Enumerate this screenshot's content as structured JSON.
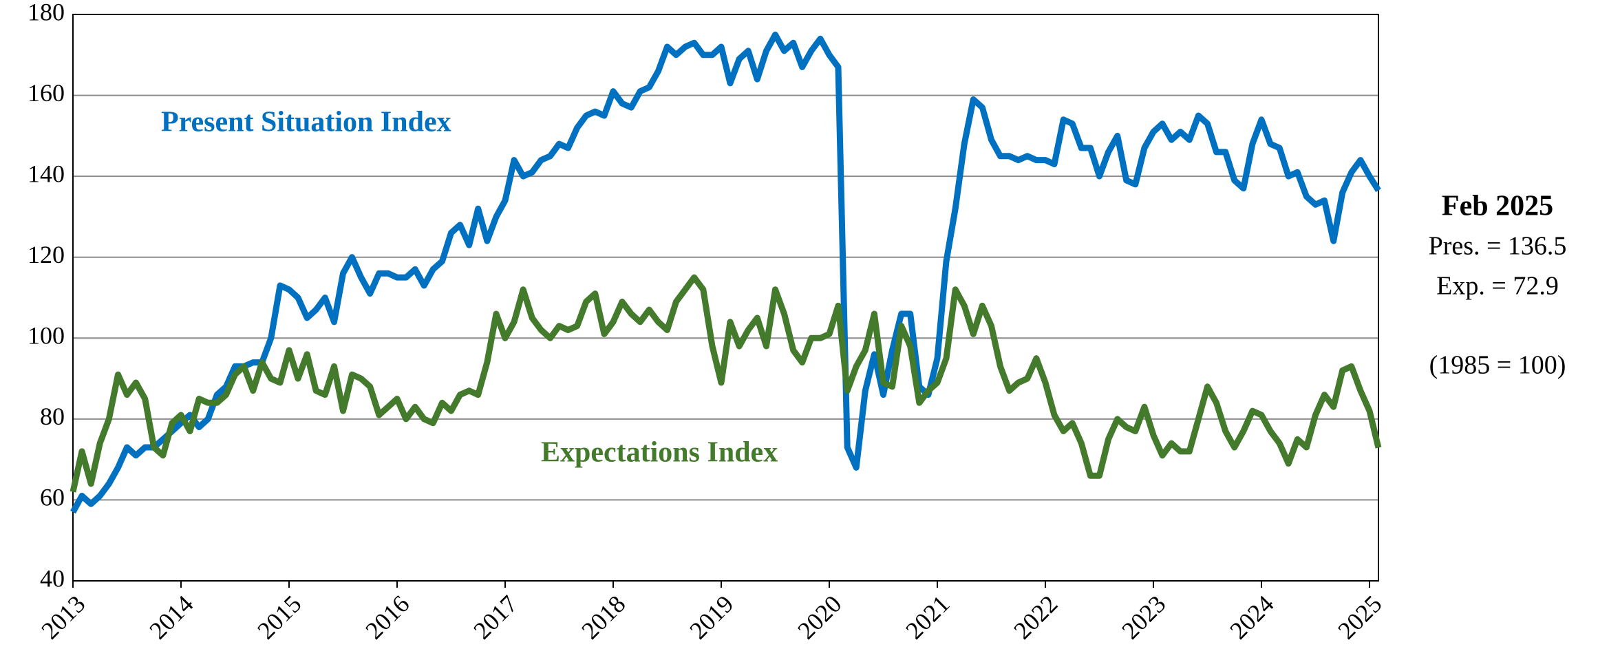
{
  "chart_data": {
    "type": "line",
    "annotations": [
      "Present Situation Index",
      "Expectations Index",
      "Feb 2025",
      "Pres. = 136.5",
      "Exp. = 72.9",
      "(1985 = 100)"
    ],
    "x": [
      2013,
      2013.083,
      2013.167,
      2013.25,
      2013.333,
      2013.417,
      2013.5,
      2013.583,
      2013.667,
      2013.75,
      2013.833,
      2013.917,
      2014,
      2014.083,
      2014.167,
      2014.25,
      2014.333,
      2014.417,
      2014.5,
      2014.583,
      2014.667,
      2014.75,
      2014.833,
      2014.917,
      2015,
      2015.083,
      2015.167,
      2015.25,
      2015.333,
      2015.417,
      2015.5,
      2015.583,
      2015.667,
      2015.75,
      2015.833,
      2015.917,
      2016,
      2016.083,
      2016.167,
      2016.25,
      2016.333,
      2016.417,
      2016.5,
      2016.583,
      2016.667,
      2016.75,
      2016.833,
      2016.917,
      2017,
      2017.083,
      2017.167,
      2017.25,
      2017.333,
      2017.417,
      2017.5,
      2017.583,
      2017.667,
      2017.75,
      2017.833,
      2017.917,
      2018,
      2018.083,
      2018.167,
      2018.25,
      2018.333,
      2018.417,
      2018.5,
      2018.583,
      2018.667,
      2018.75,
      2018.833,
      2018.917,
      2019,
      2019.083,
      2019.167,
      2019.25,
      2019.333,
      2019.417,
      2019.5,
      2019.583,
      2019.667,
      2019.75,
      2019.833,
      2019.917,
      2020,
      2020.083,
      2020.167,
      2020.25,
      2020.333,
      2020.417,
      2020.5,
      2020.583,
      2020.667,
      2020.75,
      2020.833,
      2020.917,
      2021,
      2021.083,
      2021.167,
      2021.25,
      2021.333,
      2021.417,
      2021.5,
      2021.583,
      2021.667,
      2021.75,
      2021.833,
      2021.917,
      2022,
      2022.083,
      2022.167,
      2022.25,
      2022.333,
      2022.417,
      2022.5,
      2022.583,
      2022.667,
      2022.75,
      2022.833,
      2022.917,
      2023,
      2023.083,
      2023.167,
      2023.25,
      2023.333,
      2023.417,
      2023.5,
      2023.583,
      2023.667,
      2023.75,
      2023.833,
      2023.917,
      2024,
      2024.083,
      2024.167,
      2024.25,
      2024.333,
      2024.417,
      2024.5,
      2024.583,
      2024.667,
      2024.75,
      2024.833,
      2024.917,
      2025,
      2025.083
    ],
    "series": [
      {
        "name": "Present Situation Index",
        "color": "#0070c0",
        "values": [
          57,
          61,
          59,
          61,
          64,
          68,
          73,
          71,
          73,
          73,
          75,
          77,
          79,
          81,
          78,
          80,
          86,
          88,
          93,
          93,
          94,
          94,
          100,
          113,
          112,
          110,
          105,
          107,
          110,
          104,
          116,
          120,
          115,
          111,
          116,
          116,
          115,
          115,
          117,
          113,
          117,
          119,
          126,
          128,
          123,
          132,
          124,
          130,
          134,
          144,
          140,
          141,
          144,
          145,
          148,
          147,
          152,
          155,
          156,
          155,
          161,
          158,
          157,
          161,
          162,
          166,
          172,
          170,
          172,
          173,
          170,
          170,
          172,
          163,
          169,
          171,
          164,
          171,
          175,
          171,
          173,
          167,
          171,
          174,
          170,
          167,
          73,
          68,
          87,
          96,
          86,
          97,
          106,
          106,
          88,
          86,
          95,
          119,
          132,
          148,
          159,
          157,
          149,
          145,
          145,
          144,
          145,
          144,
          144,
          143,
          154,
          153,
          147,
          147,
          140,
          146,
          150,
          139,
          138,
          147,
          151,
          153,
          149,
          151,
          149,
          155,
          153,
          146,
          146,
          139,
          137,
          148,
          154,
          148,
          147,
          140,
          141,
          135,
          133,
          134,
          124,
          136,
          141,
          144,
          140,
          136.5
        ]
      },
      {
        "name": "Expectations Index",
        "color": "#437a2b",
        "values": [
          62,
          72,
          64,
          74,
          80,
          91,
          86,
          89,
          85,
          73,
          71,
          79,
          81,
          77,
          85,
          84,
          84,
          86,
          91,
          93,
          87,
          94,
          90,
          89,
          97,
          90,
          96,
          87,
          86,
          93,
          82,
          91,
          90,
          88,
          81,
          83,
          85,
          80,
          83,
          80,
          79,
          84,
          82,
          86,
          87,
          86,
          94,
          106,
          100,
          104,
          112,
          105,
          102,
          100,
          103,
          102,
          103,
          109,
          111,
          101,
          104,
          109,
          106,
          104,
          107,
          104,
          102,
          109,
          112,
          115,
          112,
          98,
          89,
          104,
          98,
          102,
          105,
          98,
          112,
          106,
          97,
          94,
          100,
          100,
          101,
          108,
          87,
          93,
          97,
          106,
          89,
          88,
          103,
          98,
          84,
          87,
          89,
          95,
          112,
          108,
          101,
          108,
          103,
          93,
          87,
          89,
          90,
          95,
          89,
          81,
          77,
          79,
          74,
          66,
          66,
          75,
          80,
          78,
          77,
          83,
          76,
          71,
          74,
          72,
          72,
          80,
          88,
          84,
          77,
          73,
          77,
          82,
          81,
          77,
          74,
          69,
          75,
          73,
          81,
          86,
          83,
          92,
          93,
          87,
          82,
          72.9
        ]
      }
    ],
    "xlim": [
      2013,
      2025.083
    ],
    "xticks": [
      2013,
      2014,
      2015,
      2016,
      2017,
      2018,
      2019,
      2020,
      2021,
      2022,
      2023,
      2024,
      2025
    ],
    "ylim": [
      40,
      180
    ],
    "yticks": [
      40,
      60,
      80,
      100,
      120,
      140,
      160,
      180
    ],
    "grid": true
  }
}
